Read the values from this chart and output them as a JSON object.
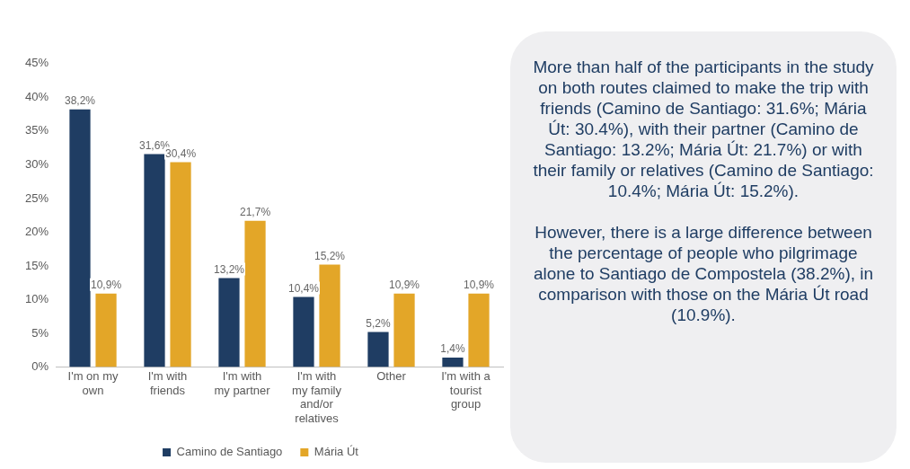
{
  "chart_data": [
    {
      "type": "bar",
      "categories": [
        "I'm on my own",
        "I'm with friends",
        "I'm with my partner",
        "I'm with my family and/or relatives",
        "Other",
        "I'm with a tourist group"
      ],
      "series": [
        {
          "name": "Camino de Santiago",
          "color": "#1f3d63",
          "values": [
            38.2,
            31.6,
            13.2,
            10.4,
            5.2,
            1.4
          ],
          "value_labels": [
            "38,2%",
            "31,6%",
            "13,2%",
            "10,4%",
            "5,2%",
            "1,4%"
          ]
        },
        {
          "name": "Mária Út",
          "color": "#e3a628",
          "values": [
            10.9,
            30.4,
            21.7,
            15.2,
            10.9,
            10.9
          ],
          "value_labels": [
            "10,9%",
            "30,4%",
            "21,7%",
            "15,2%",
            "10,9%",
            "10,9%"
          ]
        }
      ],
      "ylim": [
        0,
        45
      ],
      "yticks": [
        {
          "value": 0,
          "label": "0%"
        },
        {
          "value": 5,
          "label": "5%"
        },
        {
          "value": 10,
          "label": "10%"
        },
        {
          "value": 15,
          "label": "15%"
        },
        {
          "value": 20,
          "label": "20%"
        },
        {
          "value": 25,
          "label": "25%"
        },
        {
          "value": 30,
          "label": "30%"
        },
        {
          "value": 35,
          "label": "35%"
        },
        {
          "value": 40,
          "label": "40%"
        },
        {
          "value": 45,
          "label": "45%"
        }
      ],
      "grid": false,
      "legend": "bottom"
    },
    {
      "type": "other",
      "annotations": [
        "More than half of the participants in the study on both routes claimed to make the trip with friends (Camino de Santiago: 31.6%; Mária Út: 30.4%), with their partner (Camino de Santiago: 13.2%; Mária Út: 21.7%) or with their family or relatives (Camino de Santiago: 10.4%; Mária Út: 15.2%).",
        "However, there is a large difference between the percentage of people who pilgrimage alone to Santiago de Compostela (38.2%), in comparison with those on the Mária Út road (10.9%)."
      ]
    }
  ]
}
